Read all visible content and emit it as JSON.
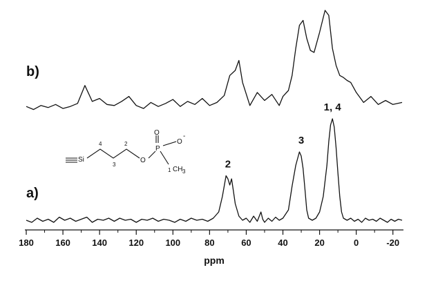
{
  "chart_data": {
    "type": "line",
    "title": "",
    "xlabel": "ppm",
    "ylabel": "",
    "xlim": [
      180,
      -25
    ],
    "x_reversed": true,
    "xticks": [
      180,
      160,
      140,
      120,
      100,
      80,
      60,
      40,
      20,
      0,
      -20
    ],
    "grid": false,
    "series": [
      {
        "name": "b)",
        "x": [
          180,
          176,
          172,
          168,
          164,
          160,
          156,
          152,
          148,
          144,
          140,
          136,
          132,
          128,
          124,
          120,
          116,
          112,
          108,
          104,
          100,
          96,
          92,
          88,
          84,
          80,
          76,
          72,
          69,
          66,
          64,
          62,
          58,
          54,
          50,
          46,
          42,
          40,
          37,
          35,
          33,
          31,
          29,
          27,
          25,
          23,
          20,
          17,
          15,
          13,
          11,
          9,
          7,
          5,
          3,
          0,
          -4,
          -8,
          -12,
          -16,
          -20,
          -25
        ],
        "y": [
          0.04,
          0.01,
          0.05,
          0.03,
          0.06,
          0.02,
          0.04,
          0.07,
          0.25,
          0.09,
          0.12,
          0.06,
          0.05,
          0.09,
          0.14,
          0.05,
          0.02,
          0.08,
          0.04,
          0.07,
          0.11,
          0.04,
          0.09,
          0.06,
          0.12,
          0.05,
          0.08,
          0.15,
          0.35,
          0.4,
          0.5,
          0.28,
          0.05,
          0.18,
          0.1,
          0.16,
          0.05,
          0.14,
          0.2,
          0.35,
          0.62,
          0.85,
          0.9,
          0.72,
          0.6,
          0.58,
          0.78,
          1.0,
          0.95,
          0.62,
          0.45,
          0.35,
          0.33,
          0.3,
          0.28,
          0.18,
          0.08,
          0.14,
          0.06,
          0.1,
          0.06,
          0.08
        ]
      },
      {
        "name": "a)",
        "x": [
          180,
          177,
          174,
          171,
          168,
          165,
          162,
          159,
          156,
          153,
          150,
          147,
          144,
          141,
          138,
          135,
          132,
          129,
          126,
          123,
          120,
          117,
          114,
          111,
          108,
          105,
          102,
          99,
          96,
          93,
          90,
          87,
          84,
          81,
          78,
          75,
          73,
          71,
          70,
          69,
          68,
          67,
          66,
          64,
          62,
          60,
          58,
          56,
          54,
          52,
          51,
          50,
          48,
          46,
          44,
          42,
          40,
          37,
          35,
          33,
          31,
          30,
          29,
          28,
          27,
          26,
          24,
          22,
          20,
          18,
          16,
          15,
          14,
          13,
          12,
          11,
          10,
          9,
          8,
          7,
          5,
          3,
          1,
          -1,
          -3,
          -5,
          -7,
          -9,
          -11,
          -13,
          -15,
          -17,
          -19,
          -21,
          -23,
          -25
        ],
        "y": [
          0.02,
          0.0,
          0.04,
          0.01,
          0.03,
          0.0,
          0.05,
          0.02,
          0.04,
          0.01,
          0.03,
          0.05,
          0.0,
          0.03,
          0.02,
          0.04,
          0.01,
          0.04,
          0.02,
          0.03,
          0.0,
          0.03,
          0.02,
          0.04,
          0.01,
          0.03,
          0.02,
          0.0,
          0.03,
          0.01,
          0.04,
          0.02,
          0.03,
          0.01,
          0.04,
          0.1,
          0.25,
          0.45,
          0.42,
          0.36,
          0.42,
          0.3,
          0.18,
          0.06,
          0.02,
          0.04,
          0.0,
          0.06,
          0.01,
          0.1,
          0.03,
          0.0,
          0.04,
          0.01,
          0.05,
          0.02,
          0.04,
          0.12,
          0.35,
          0.55,
          0.68,
          0.64,
          0.52,
          0.32,
          0.12,
          0.04,
          0.02,
          0.04,
          0.1,
          0.25,
          0.55,
          0.78,
          0.94,
          1.0,
          0.92,
          0.72,
          0.48,
          0.25,
          0.1,
          0.04,
          0.02,
          0.04,
          0.01,
          0.03,
          0.0,
          0.04,
          0.02,
          0.03,
          0.01,
          0.04,
          0.02,
          0.0,
          0.03,
          0.01,
          0.03,
          0.02
        ]
      }
    ],
    "annotations": [
      {
        "series": "a)",
        "text": "2",
        "x": 70
      },
      {
        "series": "a)",
        "text": "3",
        "x": 30
      },
      {
        "series": "a)",
        "text": "1, 4",
        "x": 13
      }
    ]
  },
  "structure": {
    "si": "Si",
    "o_link": "O",
    "p": "P",
    "o_double": "O",
    "o_minus": "O",
    "charge": "-",
    "ch3": "CH",
    "ch3_sub": "3",
    "n1": "1",
    "n2": "2",
    "n3": "3",
    "n4": "4"
  }
}
